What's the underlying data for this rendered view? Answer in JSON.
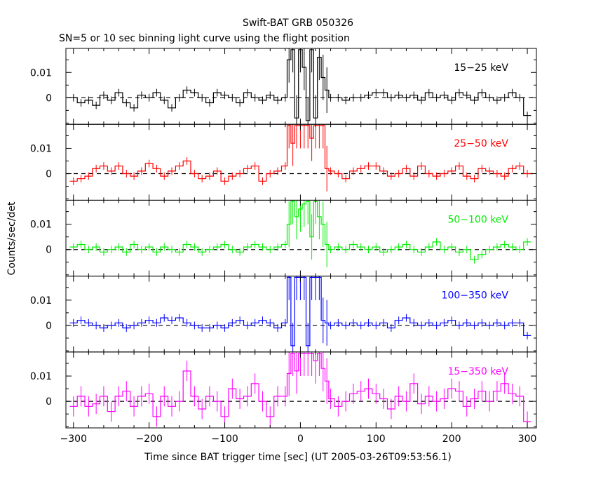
{
  "chart_data": {
    "type": "line",
    "title": "Swift-BAT GRB 050326",
    "subtitle": "SN=5 or 10 sec binning light curve using the flight position",
    "xlabel": "Time since BAT trigger time [sec] (UT 2005-03-26T09:53:56.1)",
    "ylabel": "Counts/sec/det",
    "xlim": [
      -310,
      312
    ],
    "x_ticks": [
      -300,
      -200,
      -100,
      0,
      100,
      200,
      300
    ],
    "x_tick_labels": [
      "−300",
      "−200",
      "−100",
      "0",
      "100",
      "200",
      "300"
    ],
    "y_ticks": [
      0,
      0.01
    ],
    "y_tick_labels": [
      "0",
      "0.01"
    ],
    "panels": [
      {
        "label": "15−25 keV",
        "color": "#000000",
        "ylim": [
          -0.0105,
          0.0195
        ],
        "x": [
          -300,
          -290,
          -280,
          -270,
          -260,
          -250,
          -240,
          -230,
          -220,
          -210,
          -200,
          -190,
          -180,
          -170,
          -160,
          -150,
          -140,
          -130,
          -120,
          -110,
          -100,
          -90,
          -80,
          -70,
          -60,
          -50,
          -40,
          -30,
          -20,
          -15,
          -10,
          -5,
          0,
          5,
          10,
          15,
          20,
          25,
          30,
          35,
          40,
          50,
          60,
          70,
          80,
          90,
          100,
          110,
          120,
          130,
          140,
          150,
          160,
          170,
          180,
          190,
          200,
          210,
          220,
          230,
          240,
          250,
          260,
          270,
          280,
          290,
          300
        ],
        "values": [
          0.0,
          -0.002,
          -0.001,
          -0.003,
          0.001,
          -0.001,
          0.002,
          -0.002,
          -0.004,
          0.001,
          0.0,
          0.002,
          -0.001,
          -0.004,
          0.0,
          0.003,
          0.002,
          0.0,
          -0.002,
          0.002,
          0.001,
          0.0,
          -0.002,
          0.002,
          0.0,
          -0.001,
          0.001,
          -0.001,
          0.0,
          0.015,
          0.019,
          -0.008,
          0.019,
          0.012,
          -0.009,
          0.019,
          -0.008,
          0.016,
          0.008,
          0.003,
          0.0,
          0.0,
          -0.001,
          0.0,
          0.0,
          0.001,
          0.002,
          0.002,
          0.0,
          0.001,
          0.0,
          0.001,
          -0.001,
          0.002,
          0.0,
          0.001,
          -0.001,
          0.002,
          0.001,
          -0.001,
          0.002,
          0.0,
          -0.001,
          0.0,
          0.002,
          0.0,
          -0.007
        ]
      },
      {
        "label": "25−50 keV",
        "color": "#ff0000",
        "ylim": [
          -0.0105,
          0.0195
        ],
        "x": [
          -300,
          -290,
          -280,
          -270,
          -260,
          -250,
          -240,
          -230,
          -220,
          -210,
          -200,
          -190,
          -180,
          -170,
          -160,
          -150,
          -140,
          -130,
          -120,
          -110,
          -100,
          -90,
          -80,
          -70,
          -60,
          -50,
          -40,
          -30,
          -20,
          -15,
          -10,
          -5,
          0,
          5,
          10,
          15,
          20,
          25,
          30,
          35,
          40,
          50,
          60,
          70,
          80,
          90,
          100,
          110,
          120,
          130,
          140,
          150,
          160,
          170,
          180,
          190,
          200,
          210,
          220,
          230,
          240,
          250,
          260,
          270,
          280,
          290,
          300
        ],
        "values": [
          -0.003,
          -0.002,
          -0.001,
          0.002,
          0.003,
          0.001,
          0.003,
          0.0,
          -0.001,
          0.001,
          0.004,
          0.002,
          -0.001,
          0.001,
          0.003,
          0.005,
          0.0,
          -0.002,
          -0.001,
          0.001,
          -0.003,
          -0.001,
          0.0,
          0.002,
          0.003,
          -0.003,
          0.0,
          0.001,
          0.003,
          0.019,
          0.012,
          0.019,
          0.019,
          0.019,
          0.019,
          0.014,
          0.019,
          0.019,
          0.019,
          0.002,
          0.001,
          0.0,
          -0.002,
          0.001,
          0.002,
          0.003,
          0.003,
          0.001,
          -0.001,
          0.0,
          0.002,
          -0.001,
          0.003,
          0.0,
          -0.001,
          0.0,
          0.001,
          0.003,
          -0.001,
          -0.002,
          0.002,
          0.001,
          0.0,
          -0.001,
          0.002,
          0.003,
          0.0
        ]
      },
      {
        "label": "50−100 keV",
        "color": "#00ee00",
        "ylim": [
          -0.0105,
          0.0195
        ],
        "x": [
          -300,
          -290,
          -280,
          -270,
          -260,
          -250,
          -240,
          -230,
          -220,
          -210,
          -200,
          -190,
          -180,
          -170,
          -160,
          -150,
          -140,
          -130,
          -120,
          -110,
          -100,
          -90,
          -80,
          -70,
          -60,
          -50,
          -40,
          -30,
          -20,
          -15,
          -10,
          -5,
          0,
          5,
          10,
          15,
          20,
          25,
          30,
          35,
          40,
          50,
          60,
          70,
          80,
          90,
          100,
          110,
          120,
          130,
          140,
          150,
          160,
          170,
          180,
          190,
          200,
          210,
          220,
          230,
          240,
          250,
          260,
          270,
          280,
          290,
          300
        ],
        "values": [
          0.001,
          0.002,
          0.0,
          0.001,
          -0.001,
          0.0,
          0.001,
          -0.001,
          0.002,
          0.0,
          0.001,
          -0.001,
          0.001,
          0.0,
          -0.001,
          0.002,
          0.001,
          -0.001,
          0.0,
          0.001,
          0.002,
          0.0,
          -0.001,
          0.001,
          0.002,
          0.001,
          0.0,
          0.001,
          0.002,
          0.01,
          0.019,
          0.013,
          0.016,
          0.018,
          0.019,
          0.005,
          0.019,
          0.013,
          0.01,
          0.002,
          0.0,
          0.001,
          0.0,
          0.002,
          0.001,
          0.0,
          0.001,
          -0.001,
          0.0,
          0.001,
          0.002,
          0.0,
          -0.001,
          0.001,
          0.003,
          0.0,
          0.001,
          -0.001,
          0.0,
          -0.004,
          -0.002,
          0.0,
          0.001,
          0.002,
          0.001,
          0.0,
          0.003
        ]
      },
      {
        "label": "100−350 keV",
        "color": "#0000ff",
        "ylim": [
          -0.0105,
          0.0195
        ],
        "x": [
          -300,
          -290,
          -280,
          -270,
          -260,
          -250,
          -240,
          -230,
          -220,
          -210,
          -200,
          -190,
          -180,
          -170,
          -160,
          -150,
          -140,
          -130,
          -120,
          -110,
          -100,
          -90,
          -80,
          -70,
          -60,
          -50,
          -40,
          -30,
          -20,
          -15,
          -10,
          -5,
          0,
          5,
          10,
          15,
          20,
          25,
          30,
          35,
          40,
          50,
          60,
          70,
          80,
          90,
          100,
          110,
          120,
          130,
          140,
          150,
          160,
          170,
          180,
          190,
          200,
          210,
          220,
          230,
          240,
          250,
          260,
          270,
          280,
          290,
          300
        ],
        "values": [
          0.001,
          0.002,
          0.001,
          0.0,
          -0.001,
          0.0,
          0.001,
          -0.001,
          0.0,
          0.001,
          0.002,
          0.001,
          0.003,
          0.002,
          0.003,
          0.001,
          0.0,
          -0.001,
          -0.001,
          0.0,
          -0.001,
          0.001,
          0.002,
          0.0,
          0.001,
          0.002,
          0.001,
          -0.001,
          0.001,
          0.019,
          -0.008,
          0.019,
          0.019,
          0.019,
          -0.008,
          0.019,
          0.019,
          0.019,
          0.002,
          0.001,
          0.0,
          0.001,
          0.0,
          0.001,
          0.0,
          0.001,
          0.0,
          0.001,
          -0.001,
          0.002,
          0.003,
          0.001,
          0.0,
          0.001,
          0.0,
          0.001,
          0.002,
          0.0,
          0.001,
          0.0,
          0.001,
          0.0,
          0.001,
          0.0,
          0.001,
          0.001,
          -0.004
        ]
      },
      {
        "label": "15−350 keV",
        "color": "#ff00ff",
        "ylim": [
          -0.0105,
          0.0195
        ],
        "x": [
          -300,
          -290,
          -280,
          -270,
          -260,
          -250,
          -240,
          -230,
          -220,
          -210,
          -200,
          -190,
          -180,
          -170,
          -160,
          -150,
          -140,
          -130,
          -120,
          -110,
          -100,
          -90,
          -80,
          -70,
          -60,
          -50,
          -40,
          -30,
          -20,
          -15,
          -10,
          -5,
          0,
          5,
          10,
          15,
          20,
          25,
          30,
          35,
          40,
          50,
          60,
          70,
          80,
          90,
          100,
          110,
          120,
          130,
          140,
          150,
          160,
          170,
          180,
          190,
          200,
          210,
          220,
          230,
          240,
          250,
          260,
          270,
          280,
          290,
          300
        ],
        "values": [
          -0.002,
          0.002,
          -0.002,
          -0.001,
          0.002,
          -0.004,
          0.002,
          0.004,
          -0.002,
          0.002,
          0.003,
          -0.006,
          0.002,
          -0.002,
          0.0,
          0.012,
          0.002,
          -0.003,
          0.002,
          0.0,
          -0.006,
          0.005,
          0.001,
          0.002,
          0.007,
          0.0,
          -0.006,
          0.002,
          0.002,
          0.011,
          0.019,
          0.012,
          0.019,
          0.019,
          0.019,
          0.019,
          0.016,
          0.019,
          0.013,
          0.008,
          0.001,
          -0.002,
          0.0,
          0.003,
          0.004,
          0.005,
          0.003,
          0.001,
          -0.003,
          0.002,
          0.0,
          0.007,
          -0.001,
          0.002,
          0.0,
          0.001,
          0.005,
          0.004,
          -0.002,
          0.001,
          0.004,
          0.0,
          0.004,
          0.007,
          0.003,
          0.002,
          -0.008
        ]
      }
    ]
  }
}
